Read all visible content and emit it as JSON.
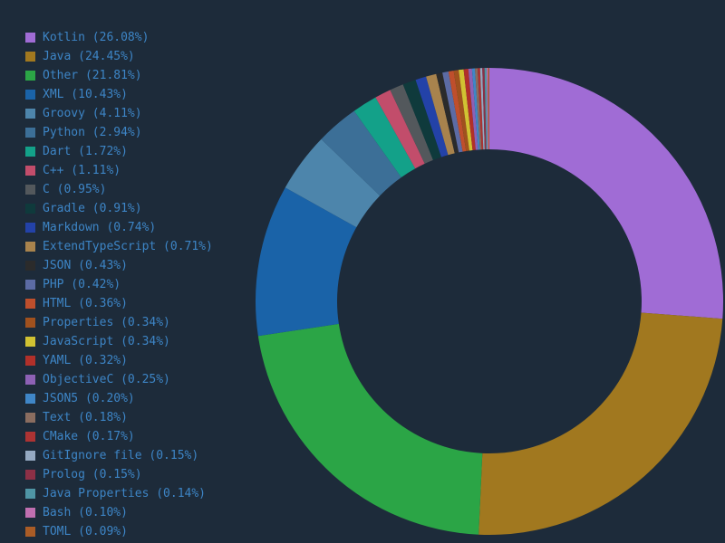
{
  "background_color": "#1d2b3a",
  "legend_text_color": "#3d85c6",
  "chart_data": {
    "type": "pie",
    "variant": "donut",
    "title": "",
    "legend_position": "left",
    "start_angle_deg": 0,
    "direction": "clockwise",
    "inner_radius_ratio": 0.65,
    "series": [
      {
        "name": "Kotlin",
        "value": 26.08,
        "color": "#a06cd5",
        "label": "Kotlin (26.08%)"
      },
      {
        "name": "Java",
        "value": 24.45,
        "color": "#a1781f",
        "label": "Java (24.45%)"
      },
      {
        "name": "Other",
        "value": 21.81,
        "color": "#2ba546",
        "label": "Other (21.81%)"
      },
      {
        "name": "XML",
        "value": 10.43,
        "color": "#1a63a8",
        "label": "XML (10.43%)"
      },
      {
        "name": "Groovy",
        "value": 4.11,
        "color": "#4d85ab",
        "label": "Groovy (4.11%)"
      },
      {
        "name": "Python",
        "value": 2.94,
        "color": "#3c6f97",
        "label": "Python (2.94%)"
      },
      {
        "name": "Dart",
        "value": 1.72,
        "color": "#13a189",
        "label": "Dart (1.72%)"
      },
      {
        "name": "C++",
        "value": 1.11,
        "color": "#c24d6b",
        "label": "C++ (1.11%)"
      },
      {
        "name": "C",
        "value": 0.95,
        "color": "#53585c",
        "label": "C (0.95%)"
      },
      {
        "name": "Gradle",
        "value": 0.91,
        "color": "#0f3a3c",
        "label": "Gradle (0.91%)"
      },
      {
        "name": "Markdown",
        "value": 0.74,
        "color": "#2342a8",
        "label": "Markdown (0.74%)"
      },
      {
        "name": "ExtendTypeScript",
        "value": 0.71,
        "color": "#a8834d",
        "label": "ExtendTypeScript (0.71%)"
      },
      {
        "name": "JSON",
        "value": 0.43,
        "color": "#2b2b2b",
        "label": "JSON (0.43%)"
      },
      {
        "name": "PHP",
        "value": 0.42,
        "color": "#5c6ba4",
        "label": "PHP (0.42%)"
      },
      {
        "name": "HTML",
        "value": 0.36,
        "color": "#bf4f2c",
        "label": "HTML (0.36%)"
      },
      {
        "name": "Properties",
        "value": 0.34,
        "color": "#a0511e",
        "label": "Properties (0.34%)"
      },
      {
        "name": "JavaScript",
        "value": 0.34,
        "color": "#d1c232",
        "label": "JavaScript (0.34%)"
      },
      {
        "name": "YAML",
        "value": 0.32,
        "color": "#b1302a",
        "label": "YAML (0.32%)"
      },
      {
        "name": "ObjectiveC",
        "value": 0.25,
        "color": "#8d61b5",
        "label": "ObjectiveC (0.25%)"
      },
      {
        "name": "JSON5",
        "value": 0.2,
        "color": "#3f86c7",
        "label": "JSON5 (0.20%)"
      },
      {
        "name": "Text",
        "value": 0.18,
        "color": "#8a6d60",
        "label": "Text (0.18%)"
      },
      {
        "name": "CMake",
        "value": 0.17,
        "color": "#ad3333",
        "label": "CMake (0.17%)"
      },
      {
        "name": "GitIgnore file",
        "value": 0.15,
        "color": "#95a9c1",
        "label": "GitIgnore file (0.15%)"
      },
      {
        "name": "Prolog",
        "value": 0.15,
        "color": "#8d3046",
        "label": "Prolog (0.15%)"
      },
      {
        "name": "Java Properties",
        "value": 0.14,
        "color": "#4f95a5",
        "label": "Java Properties (0.14%)"
      },
      {
        "name": "Bash",
        "value": 0.1,
        "color": "#c06fb0",
        "label": "Bash (0.10%)"
      },
      {
        "name": "TOML",
        "value": 0.09,
        "color": "#aa5c26",
        "label": "TOML (0.09%)"
      }
    ]
  }
}
